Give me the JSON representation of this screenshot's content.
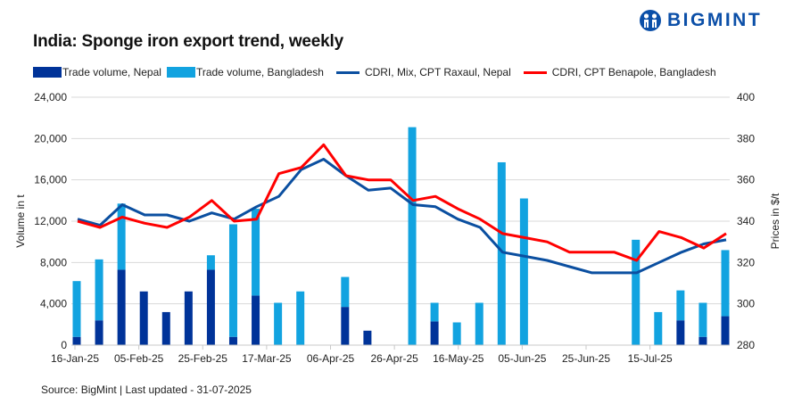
{
  "header": {
    "title": "India: Sponge iron export trend, weekly",
    "brand": "BIGMINT",
    "logo_icon": "bigmint-logo-icon"
  },
  "footer": {
    "source": "Source: BigMint | Last updated - 31-07-2025"
  },
  "colors": {
    "nepal_bar": "#003399",
    "bangladesh_bar": "#12a3e0",
    "nepal_line": "#0b4fa0",
    "bangladesh_line": "#ff0000",
    "grid": "#d9d9d9",
    "brand": "#0b4fa8"
  },
  "chart_data": {
    "type": "bar",
    "subtype": "stacked bar + line (dual axis)",
    "title": "India: Sponge iron export trend, weekly",
    "xlabel": "",
    "ylabel": "Volume in t",
    "y2label": "Prices in $/t",
    "ylim": [
      0,
      24000
    ],
    "y2lim": [
      280,
      400
    ],
    "yticks": [
      "0",
      "4,000",
      "8,000",
      "12,000",
      "16,000",
      "20,000",
      "24,000"
    ],
    "y2ticks": [
      "280",
      "300",
      "320",
      "340",
      "360",
      "380",
      "400"
    ],
    "xticks": [
      "16-Jan-25",
      "05-Feb-25",
      "25-Feb-25",
      "17-Mar-25",
      "06-Apr-25",
      "26-Apr-25",
      "16-May-25",
      "05-Jun-25",
      "25-Jun-25",
      "15-Jul-25"
    ],
    "grid": true,
    "legend_position": "top",
    "series": [
      {
        "name": "Trade volume, Nepal",
        "kind": "bar",
        "axis": "left",
        "values": [
          800,
          2400,
          7300,
          5200,
          3200,
          5200,
          7300,
          800,
          4800,
          0,
          0,
          0,
          3700,
          1400,
          0,
          0,
          2300,
          0,
          0,
          0,
          0,
          0,
          0,
          0,
          0,
          0,
          0,
          2400,
          800,
          2800
        ]
      },
      {
        "name": "Trade volume, Bangladesh",
        "kind": "bar",
        "axis": "left",
        "values": [
          5400,
          5900,
          6400,
          0,
          0,
          0,
          1400,
          10900,
          8400,
          4100,
          5200,
          0,
          2900,
          0,
          0,
          21100,
          1800,
          2200,
          4100,
          17700,
          14200,
          0,
          0,
          0,
          0,
          10200,
          3200,
          2900,
          3300,
          6400
        ]
      },
      {
        "name": "CDRI, Mix, CPT Raxaul, Nepal",
        "kind": "line",
        "axis": "right",
        "values": [
          341,
          338,
          348,
          343,
          343,
          340,
          344,
          341,
          347,
          352,
          365,
          370,
          362,
          355,
          356,
          348,
          347,
          341,
          337,
          325,
          323,
          321,
          318,
          315,
          315,
          315,
          320,
          325,
          329,
          331
        ]
      },
      {
        "name": "CDRI, CPT Benapole, Bangladesh",
        "kind": "line",
        "axis": "right",
        "values": [
          340,
          337,
          342,
          339,
          337,
          342,
          350,
          340,
          341,
          363,
          366,
          377,
          362,
          360,
          360,
          350,
          352,
          346,
          341,
          334,
          332,
          330,
          325,
          325,
          325,
          321,
          335,
          332,
          327,
          334
        ]
      }
    ]
  }
}
